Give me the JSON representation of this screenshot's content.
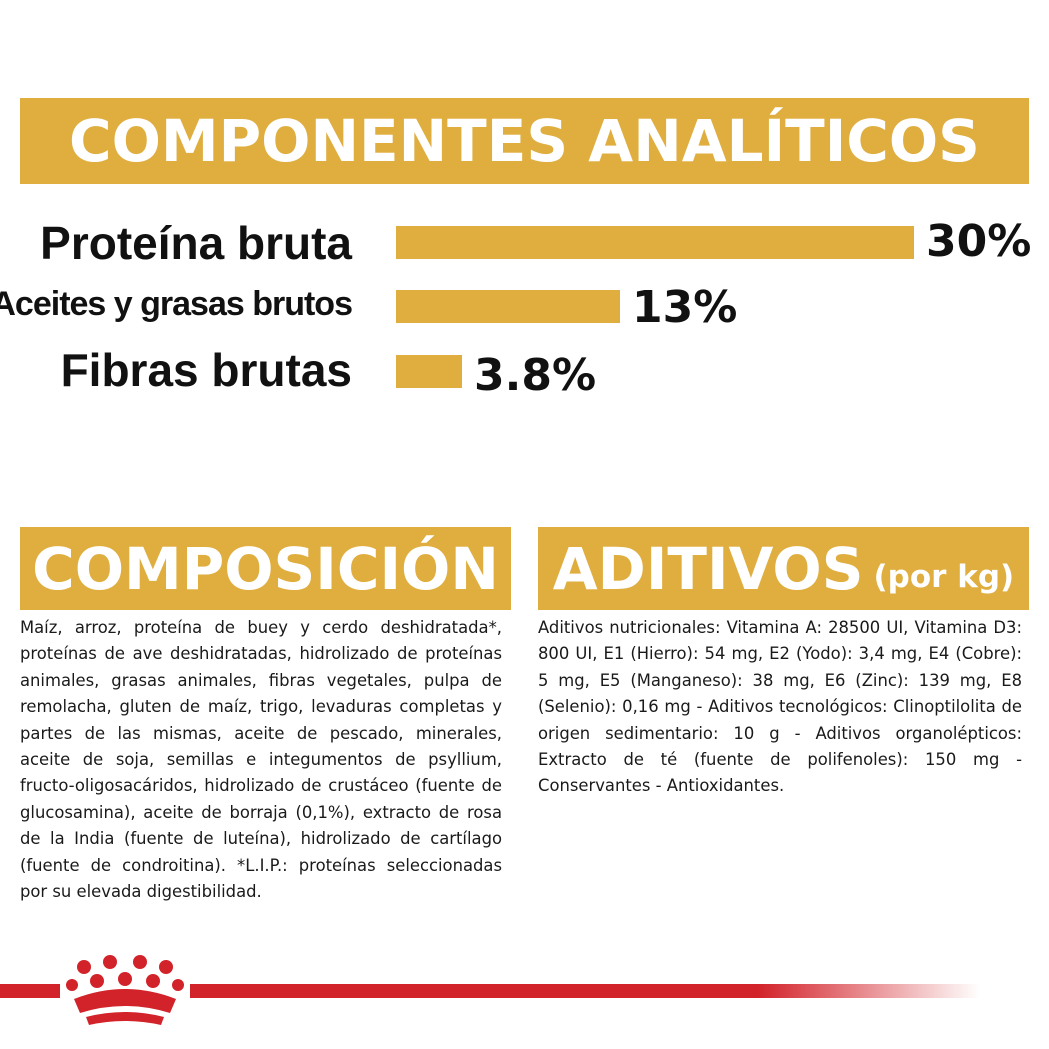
{
  "analiticos": {
    "title": "COMPONENTES ANALÍTICOS",
    "rows": [
      {
        "label": "Proteína bruta",
        "value": "30%",
        "percent": 30
      },
      {
        "label": "Aceites y grasas brutos",
        "value": "13%",
        "percent": 13
      },
      {
        "label": "Fibras brutas",
        "value": "3.8%",
        "percent": 3.8
      }
    ]
  },
  "composicion": {
    "title": "COMPOSICIÓN",
    "text": "Maíz, arroz, proteína de buey y cerdo deshidratada*, proteínas de ave deshidratadas, hidrolizado de proteínas animales, grasas animales, fibras vegetales, pulpa de remolacha, gluten de maíz, trigo, levaduras completas y partes de las mismas, aceite de pescado, minerales, aceite de soja, semillas e integumentos de psyllium, fructo-oligosacáridos, hidrolizado de crustáceo (fuente de glucosamina), aceite de borraja (0,1%), extracto de rosa de la India (fuente de luteína), hidrolizado de cartílago (fuente de condroitina). *L.I.P.: proteínas seleccionadas por su elevada digestibilidad."
  },
  "aditivos": {
    "title": "ADITIVOS",
    "subtitle": "(por kg)",
    "text": "Aditivos nutricionales: Vitamina A: 28500 UI, Vitamina D3: 800 UI, E1 (Hierro): 54 mg, E2 (Yodo): 3,4 mg, E4 (Cobre): 5 mg, E5 (Manganeso): 38 mg, E6 (Zinc): 139 mg, E8 (Selenio): 0,16 mg - Aditivos tecnológicos: Clinoptilolita de origen sedimentario: 10 g - Aditivos organolépticos: Extracto de té (fuente de polifenoles): 150 mg - Conservantes - Antioxidantes."
  },
  "colors": {
    "accent": "#DFAE3F",
    "brand_red": "#D2232A",
    "text": "#111111"
  },
  "icons": {
    "logo": "royal-crown-logo-icon"
  }
}
